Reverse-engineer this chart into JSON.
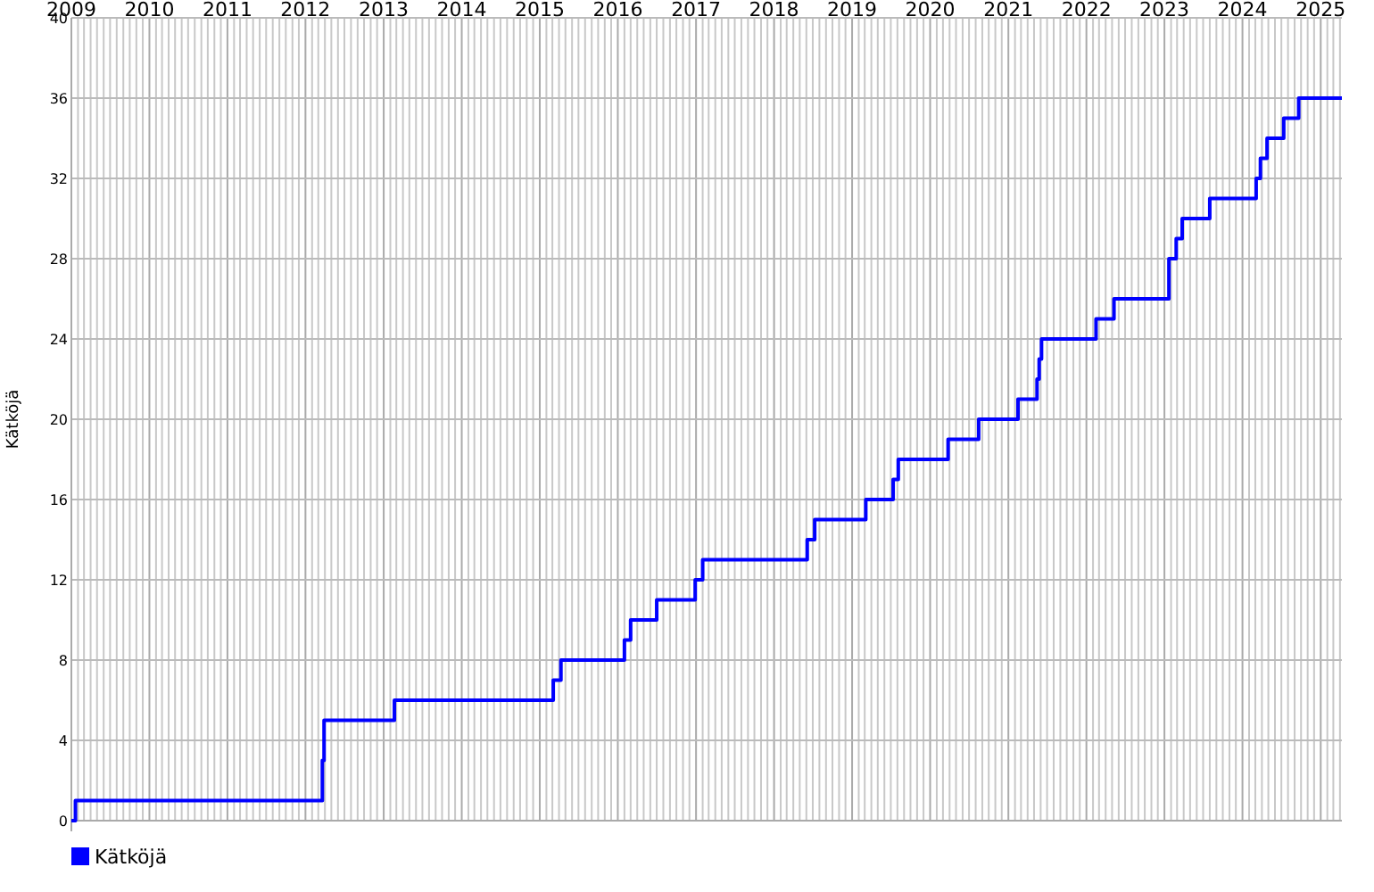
{
  "chart_data": {
    "type": "step",
    "ylabel": "Kätköjä",
    "xlim": [
      "2009-01-01",
      "2025-04-10"
    ],
    "ylim": [
      0,
      40
    ],
    "xticks": [
      "2009",
      "2010",
      "2011",
      "2012",
      "2013",
      "2014",
      "2015",
      "2016",
      "2017",
      "2018",
      "2019",
      "2020",
      "2021",
      "2022",
      "2023",
      "2024",
      "2025"
    ],
    "yticks": [
      0,
      4,
      8,
      12,
      16,
      20,
      24,
      28,
      32,
      36,
      40
    ],
    "grid": true,
    "legend": "bottom left",
    "marker": "none",
    "line_style": "solid",
    "x": [
      "2009-01-01",
      "2009-01-20",
      "2012-03-20",
      "2012-03-28",
      "2013-02-20",
      "2015-03-05",
      "2015-04-10",
      "2016-02-01",
      "2016-03-01",
      "2016-07-01",
      "2016-12-28",
      "2017-02-01",
      "2018-06-05",
      "2018-07-10",
      "2019-03-06",
      "2019-07-12",
      "2019-08-05",
      "2020-03-25",
      "2020-08-15",
      "2021-02-15",
      "2021-05-15",
      "2021-05-25",
      "2021-06-05",
      "2022-02-15",
      "2022-05-10",
      "2023-01-22",
      "2023-02-25",
      "2023-03-25",
      "2023-08-01",
      "2024-03-05",
      "2024-03-25",
      "2024-04-25",
      "2024-07-12",
      "2024-09-20",
      "2025-04-10"
    ],
    "series": [
      {
        "name": "Kätköjä",
        "color": "#0000ff",
        "values": [
          0,
          1,
          3,
          5,
          6,
          7,
          8,
          9,
          10,
          11,
          12,
          13,
          14,
          15,
          16,
          17,
          18,
          19,
          20,
          21,
          22,
          23,
          24,
          25,
          26,
          28,
          29,
          30,
          31,
          32,
          33,
          34,
          35,
          36,
          36
        ]
      }
    ]
  }
}
